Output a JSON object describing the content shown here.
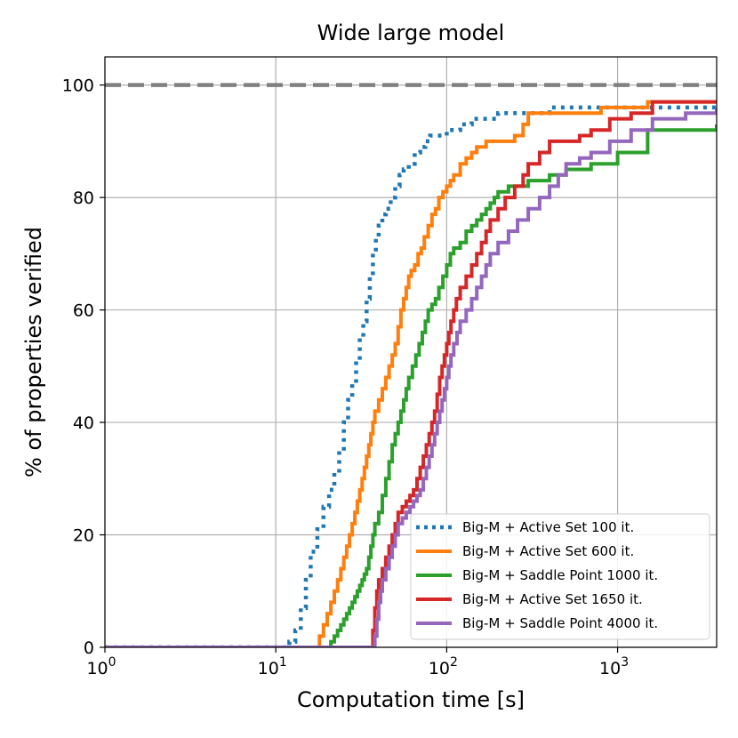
{
  "chart_data": {
    "type": "line",
    "title": "Wide large model",
    "xlabel": "Computation time [s]",
    "ylabel": "% of properties verified",
    "xscale": "log",
    "xlim": [
      1,
      3800
    ],
    "ylim": [
      0,
      105
    ],
    "grid": true,
    "x_ticks": [
      {
        "value": 1,
        "base": "10",
        "exp": "0"
      },
      {
        "value": 10,
        "base": "10",
        "exp": "1"
      },
      {
        "value": 100,
        "base": "10",
        "exp": "2"
      },
      {
        "value": 1000,
        "base": "10",
        "exp": "3"
      }
    ],
    "y_ticks": [
      0,
      20,
      40,
      60,
      80,
      100
    ],
    "reference_line": {
      "y": 100,
      "color": "#808080",
      "style": "dashed"
    },
    "legend_position": "lower-right",
    "series": [
      {
        "name": "Big-M + Active Set 100 it.",
        "color": "#1f77b4",
        "style": "dotted",
        "x": [
          1,
          12,
          13,
          14,
          15,
          16,
          17.5,
          19,
          20.5,
          22,
          23.5,
          25,
          26.5,
          28,
          29.5,
          31,
          32.5,
          34,
          35.5,
          37,
          38.5,
          40,
          42,
          44,
          47,
          50,
          53,
          56,
          60,
          65,
          70,
          75,
          80,
          90,
          100,
          110,
          120,
          140,
          160,
          200,
          250,
          300,
          400,
          600,
          800,
          1500,
          3800
        ],
        "y": [
          0,
          1,
          3,
          7,
          12,
          17,
          21,
          25,
          28,
          31,
          35,
          40,
          44,
          47,
          51,
          55,
          58,
          62,
          66,
          70,
          73,
          75,
          77,
          78,
          80,
          82,
          84,
          85,
          86,
          88,
          89,
          90,
          91,
          91,
          92,
          92,
          93,
          94,
          94,
          95,
          95,
          95,
          96,
          96,
          96,
          96,
          96
        ]
      },
      {
        "name": "Big-M + Active Set 600 it.",
        "color": "#ff7f0e",
        "style": "solid",
        "x": [
          1,
          18,
          19,
          20,
          21,
          22,
          23,
          24,
          25,
          26,
          27,
          28,
          29,
          30,
          31,
          32,
          33,
          34,
          35,
          36,
          37,
          38,
          40,
          42,
          44,
          46,
          48,
          50,
          52,
          54,
          56,
          58,
          60,
          62,
          65,
          68,
          71,
          74,
          78,
          82,
          86,
          90,
          95,
          100,
          105,
          110,
          120,
          130,
          140,
          150,
          170,
          200,
          250,
          280,
          300,
          350,
          500,
          800,
          1500,
          3800
        ],
        "y": [
          0,
          2,
          4,
          6,
          8,
          10,
          12,
          14,
          16,
          18,
          20,
          22,
          24,
          26,
          28,
          30,
          32,
          34,
          36,
          38,
          40,
          42,
          44,
          46,
          48,
          50,
          52,
          54,
          57,
          60,
          62,
          64,
          66,
          67,
          68,
          70,
          71,
          73,
          75,
          77,
          78,
          80,
          81,
          82,
          83,
          84,
          86,
          87,
          88,
          89,
          90,
          90,
          91,
          93,
          95,
          95,
          95,
          96,
          97,
          97
        ]
      },
      {
        "name": "Big-M + Saddle Point 1000 it.",
        "color": "#2ca02c",
        "style": "solid",
        "x": [
          1,
          21,
          22,
          23,
          24,
          25,
          26,
          27,
          28,
          29,
          30,
          31,
          32,
          33,
          34,
          35,
          36,
          37,
          38,
          40,
          42,
          44,
          46,
          48,
          50,
          52,
          54,
          56,
          58,
          60,
          63,
          66,
          69,
          72,
          75,
          78,
          82,
          86,
          90,
          95,
          100,
          105,
          110,
          120,
          130,
          140,
          150,
          160,
          170,
          180,
          190,
          200,
          230,
          250,
          300,
          400,
          500,
          700,
          1000,
          1500,
          3800
        ],
        "y": [
          0,
          1,
          2,
          3,
          4,
          5,
          6,
          7,
          8,
          9,
          10,
          11,
          12,
          13,
          14,
          16,
          18,
          20,
          22,
          24,
          27,
          30,
          33,
          36,
          38,
          40,
          42,
          44,
          46,
          48,
          50,
          52,
          54,
          56,
          58,
          60,
          61,
          62,
          64,
          66,
          68,
          70,
          71,
          72,
          74,
          75,
          76,
          77,
          78,
          79,
          80,
          81,
          82,
          82,
          83,
          84,
          85,
          86,
          88,
          92,
          93
        ]
      },
      {
        "name": "Big-M + Active Set 1650 it.",
        "color": "#d62728",
        "style": "solid",
        "x": [
          1,
          37,
          38,
          39,
          40,
          42,
          44,
          46,
          48,
          50,
          52,
          55,
          58,
          61,
          64,
          67,
          70,
          73,
          76,
          79,
          82,
          85,
          88,
          91,
          94,
          97,
          100,
          103,
          106,
          110,
          114,
          120,
          130,
          140,
          150,
          160,
          170,
          180,
          200,
          220,
          250,
          280,
          300,
          350,
          400,
          500,
          600,
          700,
          900,
          1200,
          1600,
          3800
        ],
        "y": [
          0,
          3,
          7,
          10,
          12,
          14,
          16,
          18,
          20,
          22,
          24,
          25,
          26,
          27,
          28,
          30,
          32,
          34,
          36,
          38,
          40,
          42,
          45,
          48,
          50,
          52,
          54,
          56,
          58,
          60,
          62,
          64,
          66,
          68,
          70,
          72,
          74,
          76,
          78,
          80,
          82,
          84,
          86,
          88,
          90,
          90,
          91,
          92,
          94,
          95,
          97,
          97
        ]
      },
      {
        "name": "Big-M + Saddle Point 4000 it.",
        "color": "#9467bd",
        "style": "solid",
        "x": [
          1,
          38,
          39,
          40,
          41,
          42,
          44,
          46,
          48,
          50,
          52,
          55,
          58,
          61,
          64,
          67,
          70,
          73,
          76,
          79,
          82,
          85,
          88,
          91,
          94,
          97,
          100,
          103,
          106,
          110,
          115,
          120,
          130,
          140,
          150,
          160,
          170,
          180,
          200,
          230,
          260,
          300,
          350,
          400,
          450,
          500,
          600,
          700,
          900,
          1200,
          1600,
          2500,
          3800
        ],
        "y": [
          0,
          2,
          5,
          8,
          10,
          12,
          14,
          16,
          18,
          20,
          22,
          23,
          24,
          25,
          26,
          27,
          28,
          30,
          32,
          34,
          36,
          38,
          40,
          42,
          44,
          46,
          48,
          50,
          52,
          54,
          56,
          58,
          60,
          62,
          64,
          66,
          68,
          70,
          72,
          74,
          76,
          78,
          80,
          82,
          84,
          86,
          87,
          88,
          90,
          92,
          94,
          95,
          96
        ]
      }
    ]
  }
}
